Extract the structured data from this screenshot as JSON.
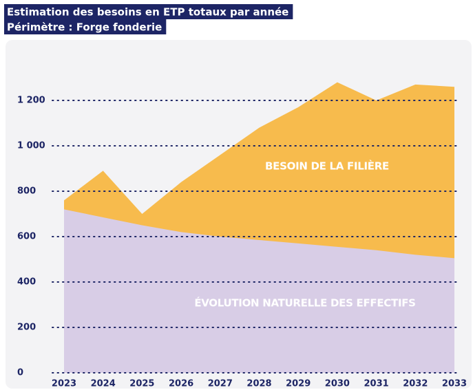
{
  "chart_data": {
    "type": "area",
    "title": "Estimation des besoins en ETP totaux par année",
    "subtitle": "Périmètre : Forge fonderie",
    "categories": [
      "2023",
      "2024",
      "2025",
      "2026",
      "2027",
      "2028",
      "2029",
      "2030",
      "2031",
      "2032",
      "2033"
    ],
    "series": [
      {
        "name": "BESOIN DE LA FILIÈRE",
        "color": "#f7bb4d",
        "values": [
          760,
          890,
          700,
          840,
          960,
          1080,
          1170,
          1280,
          1200,
          1270,
          1260
        ]
      },
      {
        "name": "ÉVOLUTION NATURELLE DES EFFECTIFS",
        "color": "#d8cde6",
        "values": [
          720,
          685,
          650,
          620,
          600,
          585,
          570,
          555,
          540,
          520,
          505
        ]
      }
    ],
    "ylim": [
      0,
      1200
    ],
    "yticks": [
      0,
      200,
      400,
      600,
      800,
      {
        "value": 1000,
        "label": "1 000"
      },
      {
        "value": 1200,
        "label": "1 200"
      }
    ],
    "grid": true
  }
}
